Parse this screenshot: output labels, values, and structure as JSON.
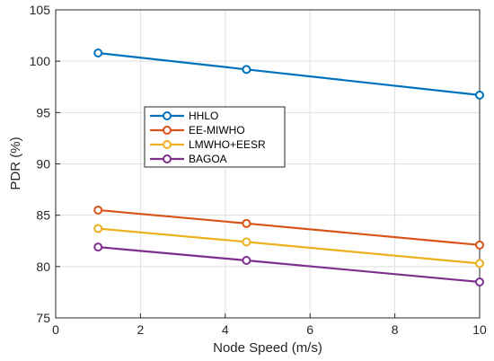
{
  "chart_data": {
    "type": "line",
    "title": "",
    "xlabel": "Node Speed (m/s)",
    "ylabel": "PDR (%)",
    "xlim": [
      0,
      10
    ],
    "ylim": [
      75,
      105
    ],
    "xticks": [
      0,
      2,
      4,
      6,
      8,
      10
    ],
    "yticks": [
      75,
      80,
      85,
      90,
      95,
      100,
      105
    ],
    "grid": true,
    "legend_position": "center-left",
    "marker": "circle",
    "x": [
      1,
      4.5,
      10
    ],
    "series": [
      {
        "name": "HHLO",
        "color": "#0072bd",
        "values": [
          100.8,
          99.2,
          96.7
        ]
      },
      {
        "name": "EE-MIWHO",
        "color": "#d95319",
        "values": [
          85.5,
          84.2,
          82.1
        ]
      },
      {
        "name": "LMWHO+EESR",
        "color": "#edb120",
        "values": [
          83.7,
          82.4,
          80.3
        ]
      },
      {
        "name": "BAGOA",
        "color": "#7e2f8e",
        "values": [
          81.9,
          80.6,
          78.5
        ]
      }
    ]
  }
}
